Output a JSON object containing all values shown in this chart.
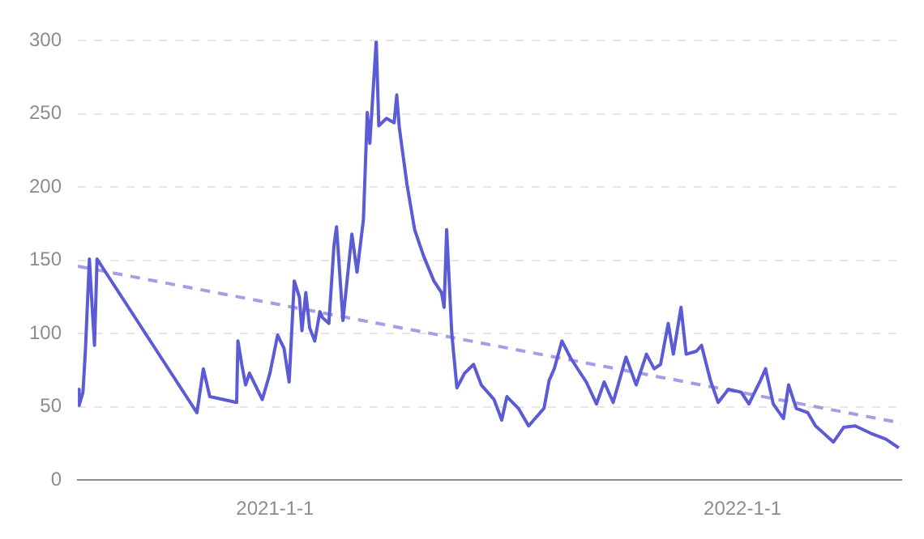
{
  "chart_data": {
    "type": "line",
    "xlim": [
      "2020-07-31",
      "2022-05-05"
    ],
    "xticks": [
      {
        "value": "2021-01-01",
        "label": "2021-1-1"
      },
      {
        "value": "2022-01-01",
        "label": "2022-1-1"
      }
    ],
    "ylim": [
      0,
      300
    ],
    "yticks": [
      0,
      50,
      100,
      150,
      200,
      250,
      300
    ],
    "grid": "y",
    "legend": false,
    "marker": "none",
    "series": [
      {
        "color": "#5b5bd6",
        "line_style": "solid",
        "x": [
          "2020-07-31",
          "2020-08-01",
          "2020-08-04",
          "2020-08-06",
          "2020-08-09",
          "2020-08-11",
          "2020-08-13",
          "2020-08-15",
          "2020-11-01",
          "2020-11-06",
          "2020-11-11",
          "2020-12-02",
          "2020-12-03",
          "2020-12-06",
          "2020-12-09",
          "2020-12-12",
          "2020-12-22",
          "2020-12-28",
          "2021-01-03",
          "2021-01-08",
          "2021-01-12",
          "2021-01-16",
          "2021-01-20",
          "2021-01-22",
          "2021-01-25",
          "2021-01-28",
          "2021-02-01",
          "2021-02-05",
          "2021-02-07",
          "2021-02-12",
          "2021-02-16",
          "2021-02-18",
          "2021-02-23",
          "2021-03-02",
          "2021-03-06",
          "2021-03-11",
          "2021-03-14",
          "2021-03-16",
          "2021-03-21",
          "2021-03-23",
          "2021-03-29",
          "2021-04-04",
          "2021-04-06",
          "2021-04-08",
          "2021-04-14",
          "2021-04-20",
          "2021-04-27",
          "2021-05-05",
          "2021-05-11",
          "2021-05-13",
          "2021-05-15",
          "2021-05-19",
          "2021-05-23",
          "2021-05-29",
          "2021-06-05",
          "2021-06-11",
          "2021-06-21",
          "2021-06-27",
          "2021-07-01",
          "2021-07-10",
          "2021-07-18",
          "2021-07-30",
          "2021-08-03",
          "2021-08-07",
          "2021-08-13",
          "2021-08-20",
          "2021-09-01",
          "2021-09-09",
          "2021-09-15",
          "2021-09-22",
          "2021-10-02",
          "2021-10-10",
          "2021-10-18",
          "2021-10-24",
          "2021-10-29",
          "2021-11-04",
          "2021-11-08",
          "2021-11-14",
          "2021-11-18",
          "2021-11-26",
          "2021-11-30",
          "2021-12-07",
          "2021-12-13",
          "2021-12-21",
          "2021-12-31",
          "2022-01-06",
          "2022-01-15",
          "2022-01-19",
          "2022-01-25",
          "2022-02-02",
          "2022-02-06",
          "2022-02-12",
          "2022-02-21",
          "2022-02-27",
          "2022-03-13",
          "2022-03-21",
          "2022-03-30",
          "2022-04-11",
          "2022-04-23",
          "2022-05-03"
        ],
        "values": [
          62,
          51,
          60,
          90,
          151,
          121,
          92,
          151,
          46,
          76,
          57,
          53,
          95,
          79,
          65,
          73,
          55,
          73,
          99,
          90,
          67,
          136,
          125,
          102,
          128,
          104,
          95,
          115,
          111,
          107,
          160,
          173,
          109,
          168,
          142,
          178,
          251,
          230,
          300,
          242,
          247,
          244,
          263,
          241,
          202,
          171,
          153,
          136,
          128,
          118,
          171,
          100,
          63,
          73,
          79,
          65,
          55,
          41,
          57,
          49,
          37,
          49,
          68,
          76,
          95,
          83,
          67,
          52,
          67,
          53,
          84,
          65,
          86,
          76,
          79,
          107,
          86,
          118,
          86,
          88,
          92,
          68,
          53,
          62,
          60,
          52,
          68,
          76,
          52,
          42,
          65,
          49,
          46,
          37,
          26,
          36,
          37,
          32,
          28,
          22
        ]
      },
      {
        "color": "#a99ce6",
        "line_style": "dashed",
        "x": [
          "2020-07-31",
          "2022-05-05"
        ],
        "values": [
          146,
          39
        ]
      }
    ]
  }
}
